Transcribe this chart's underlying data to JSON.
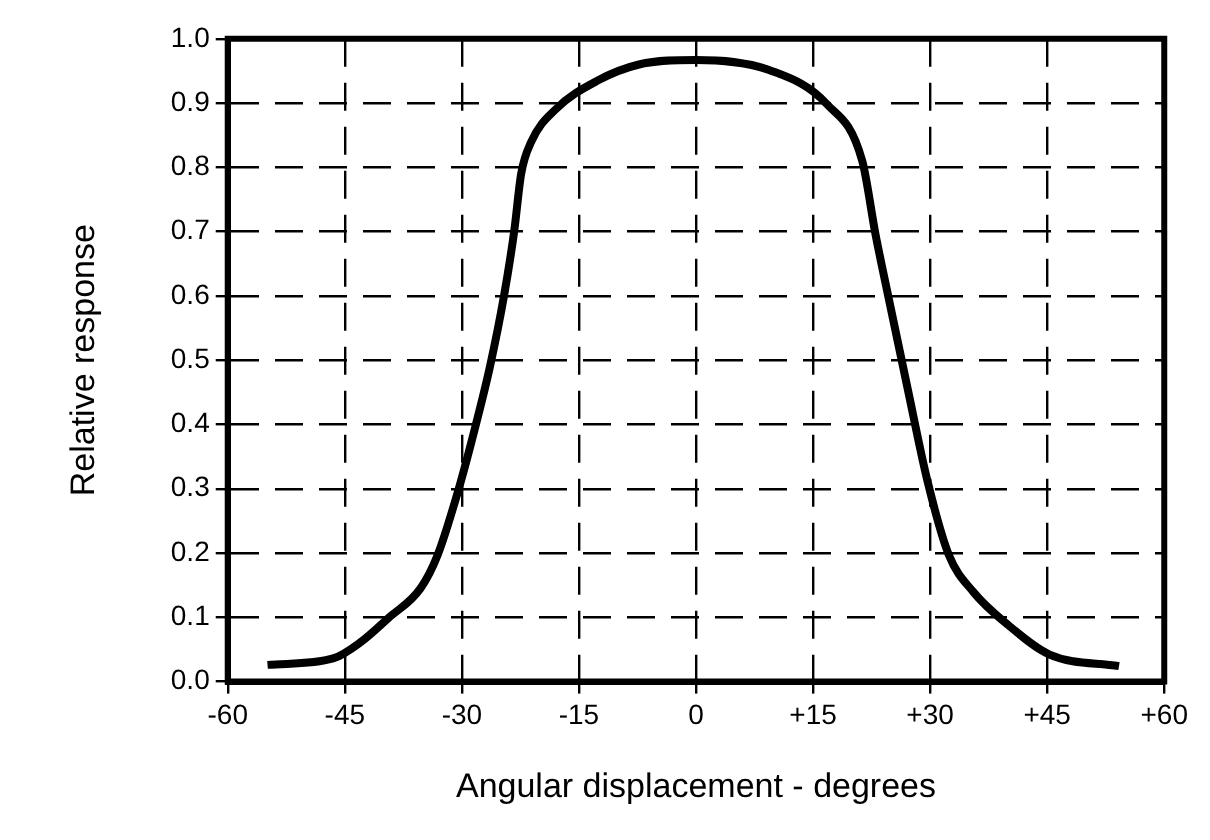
{
  "chart_data": {
    "type": "line",
    "xlabel": "Angular displacement - degrees",
    "ylabel": "Relative response",
    "xlim": [
      -60,
      60
    ],
    "ylim": [
      0,
      1
    ],
    "xticks": [
      -60,
      -45,
      -30,
      -15,
      0,
      {
        "value": 15,
        "label": "+15"
      },
      {
        "value": 30,
        "label": "+30"
      },
      {
        "value": 45,
        "label": "+45"
      },
      {
        "value": 60,
        "label": "+60"
      }
    ],
    "yticks": [
      {
        "value": 0,
        "label": "0.0"
      },
      {
        "value": 0.1,
        "label": "0.1"
      },
      {
        "value": 0.2,
        "label": "0.2"
      },
      {
        "value": 0.3,
        "label": "0.3"
      },
      {
        "value": 0.4,
        "label": "0.4"
      },
      {
        "value": 0.5,
        "label": "0.5"
      },
      {
        "value": 0.6,
        "label": "0.6"
      },
      {
        "value": 0.7,
        "label": "0.7"
      },
      {
        "value": 0.8,
        "label": "0.8"
      },
      {
        "value": 0.9,
        "label": "0.9"
      },
      {
        "value": 1,
        "label": "1.0"
      }
    ],
    "grid": true,
    "legend": false,
    "marker": "none",
    "line_style": "solid",
    "series": [
      {
        "color": "#000000",
        "x": [
          -54.9,
          -46.5,
          -42.9,
          -39.4,
          -35.3,
          -33.1,
          -30.4,
          -28.2,
          -26.4,
          -24.6,
          -23.3,
          -22.4,
          -21.1,
          -18.0,
          -12.6,
          -7.3,
          0,
          9.7,
          16.8,
          21.3,
          23.0,
          24.8,
          27.1,
          29.7,
          32.4,
          35.5,
          40.0,
          45.3,
          54.2
        ],
        "values": [
          0.026,
          0.036,
          0.062,
          0.099,
          0.145,
          0.197,
          0.3,
          0.4,
          0.49,
          0.6,
          0.7,
          0.79,
          0.84,
          0.89,
          0.935,
          0.96,
          0.967,
          0.95,
          0.898,
          0.81,
          0.696,
          0.59,
          0.457,
          0.31,
          0.197,
          0.14,
          0.088,
          0.042,
          0.024
        ]
      }
    ]
  }
}
